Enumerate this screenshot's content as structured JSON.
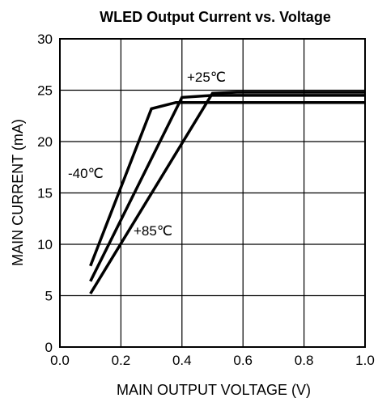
{
  "chart_data": {
    "type": "line",
    "title": "WLED Output Current vs. Voltage",
    "xlabel": "MAIN OUTPUT VOLTAGE (V)",
    "ylabel": "MAIN CURRENT (mA)",
    "xlim": [
      0.0,
      1.0
    ],
    "ylim": [
      0,
      30
    ],
    "xticks": [
      "0.0",
      "0.2",
      "0.4",
      "0.6",
      "0.8",
      "1.0"
    ],
    "yticks": [
      "0",
      "5",
      "10",
      "15",
      "20",
      "25",
      "30"
    ],
    "grid": true,
    "series": [
      {
        "name": "-40℃",
        "x": [
          0.1,
          0.3,
          0.38,
          1.0
        ],
        "y": [
          7.9,
          23.2,
          23.8,
          23.8
        ]
      },
      {
        "name": "+25℃",
        "x": [
          0.1,
          0.4,
          0.5,
          1.0
        ],
        "y": [
          6.4,
          24.3,
          24.5,
          24.5
        ]
      },
      {
        "name": "+85℃",
        "x": [
          0.1,
          0.5,
          0.58,
          1.0
        ],
        "y": [
          5.2,
          24.7,
          24.8,
          24.8
        ]
      }
    ],
    "annotations": [
      "-40℃",
      "+25℃",
      "+85℃"
    ],
    "line_color": "#000000"
  }
}
